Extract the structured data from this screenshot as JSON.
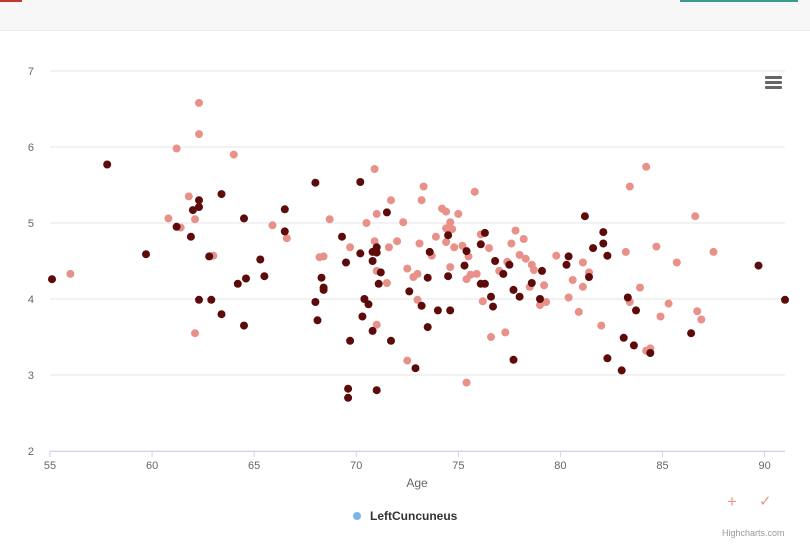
{
  "chart_data": {
    "type": "scatter",
    "xlabel": "Age",
    "ylabel": "",
    "xlim": [
      55,
      91
    ],
    "ylim": [
      2,
      7
    ],
    "x_ticks": [
      55,
      60,
      65,
      70,
      75,
      80,
      85,
      90
    ],
    "y_ticks": [
      2,
      3,
      4,
      5,
      6,
      7
    ],
    "grid": "horizontal",
    "legend": {
      "position": "bottom-center",
      "label": "LeftCuncuneus",
      "color": "#7cb5ec"
    },
    "series": [
      {
        "color": "#5c0a0a",
        "points": [
          [
            55.1,
            4.26
          ],
          [
            57.8,
            5.77
          ],
          [
            59.7,
            4.59
          ],
          [
            61.2,
            4.95
          ],
          [
            61.9,
            4.82
          ],
          [
            62.0,
            5.17
          ],
          [
            62.3,
            5.3
          ],
          [
            62.3,
            5.21
          ],
          [
            62.3,
            3.99
          ],
          [
            62.8,
            4.56
          ],
          [
            62.9,
            3.99
          ],
          [
            63.4,
            5.38
          ],
          [
            63.4,
            3.8
          ],
          [
            64.2,
            4.2
          ],
          [
            64.5,
            5.06
          ],
          [
            64.5,
            3.65
          ],
          [
            64.6,
            4.27
          ],
          [
            65.3,
            4.52
          ],
          [
            65.5,
            4.3
          ],
          [
            66.5,
            5.18
          ],
          [
            66.5,
            4.89
          ],
          [
            68.0,
            5.53
          ],
          [
            68.0,
            3.96
          ],
          [
            68.1,
            3.72
          ],
          [
            68.3,
            4.28
          ],
          [
            68.4,
            4.15
          ],
          [
            68.4,
            4.12
          ],
          [
            69.3,
            4.82
          ],
          [
            69.5,
            4.48
          ],
          [
            69.6,
            2.82
          ],
          [
            69.6,
            2.7
          ],
          [
            69.7,
            3.45
          ],
          [
            70.2,
            5.54
          ],
          [
            70.2,
            4.6
          ],
          [
            70.3,
            3.77
          ],
          [
            70.4,
            4.0
          ],
          [
            70.6,
            3.93
          ],
          [
            70.8,
            4.62
          ],
          [
            70.8,
            4.5
          ],
          [
            70.8,
            3.58
          ],
          [
            71.0,
            4.68
          ],
          [
            71.0,
            4.61
          ],
          [
            71.0,
            2.8
          ],
          [
            71.1,
            4.2
          ],
          [
            71.2,
            4.35
          ],
          [
            71.5,
            5.14
          ],
          [
            71.7,
            3.45
          ],
          [
            72.6,
            4.1
          ],
          [
            72.9,
            3.09
          ],
          [
            73.2,
            3.91
          ],
          [
            73.5,
            4.28
          ],
          [
            73.5,
            3.63
          ],
          [
            73.6,
            4.62
          ],
          [
            74.0,
            3.85
          ],
          [
            74.5,
            4.84
          ],
          [
            74.5,
            4.3
          ],
          [
            74.6,
            3.85
          ],
          [
            75.3,
            4.44
          ],
          [
            75.4,
            4.63
          ],
          [
            76.1,
            4.72
          ],
          [
            76.1,
            4.2
          ],
          [
            76.3,
            4.87
          ],
          [
            76.3,
            4.2
          ],
          [
            76.6,
            4.03
          ],
          [
            76.7,
            3.9
          ],
          [
            76.8,
            4.5
          ],
          [
            77.2,
            4.33
          ],
          [
            77.5,
            4.45
          ],
          [
            77.7,
            4.12
          ],
          [
            77.7,
            3.2
          ],
          [
            78.0,
            4.03
          ],
          [
            78.6,
            4.21
          ],
          [
            79.0,
            4.0
          ],
          [
            79.1,
            4.37
          ],
          [
            80.3,
            4.45
          ],
          [
            80.4,
            4.56
          ],
          [
            81.2,
            5.09
          ],
          [
            81.4,
            4.29
          ],
          [
            81.6,
            4.67
          ],
          [
            82.1,
            4.88
          ],
          [
            82.1,
            4.73
          ],
          [
            82.3,
            4.57
          ],
          [
            82.3,
            3.22
          ],
          [
            83.0,
            3.06
          ],
          [
            83.1,
            3.49
          ],
          [
            83.3,
            4.02
          ],
          [
            83.6,
            3.39
          ],
          [
            83.7,
            3.85
          ],
          [
            84.4,
            3.29
          ],
          [
            86.4,
            3.55
          ],
          [
            89.7,
            4.44
          ],
          [
            91.0,
            3.99
          ]
        ]
      },
      {
        "color": "#e8918a",
        "points": [
          [
            56.0,
            4.33
          ],
          [
            60.8,
            5.06
          ],
          [
            61.2,
            5.98
          ],
          [
            61.4,
            4.94
          ],
          [
            61.8,
            5.35
          ],
          [
            62.1,
            5.05
          ],
          [
            62.1,
            3.55
          ],
          [
            62.3,
            6.58
          ],
          [
            62.3,
            6.17
          ],
          [
            63.0,
            4.57
          ],
          [
            64.0,
            5.9
          ],
          [
            65.9,
            4.97
          ],
          [
            66.6,
            4.8
          ],
          [
            68.2,
            4.55
          ],
          [
            68.4,
            4.56
          ],
          [
            68.7,
            5.05
          ],
          [
            69.7,
            4.68
          ],
          [
            70.5,
            5.0
          ],
          [
            70.9,
            5.71
          ],
          [
            70.9,
            4.76
          ],
          [
            71.0,
            5.12
          ],
          [
            71.0,
            4.37
          ],
          [
            71.0,
            3.66
          ],
          [
            71.5,
            4.21
          ],
          [
            71.6,
            4.68
          ],
          [
            71.7,
            5.3
          ],
          [
            72.0,
            4.76
          ],
          [
            72.3,
            5.01
          ],
          [
            72.5,
            4.4
          ],
          [
            72.5,
            3.19
          ],
          [
            72.8,
            4.29
          ],
          [
            73.0,
            4.33
          ],
          [
            73.0,
            3.99
          ],
          [
            73.1,
            4.73
          ],
          [
            73.2,
            5.3
          ],
          [
            73.3,
            5.48
          ],
          [
            73.7,
            4.57
          ],
          [
            73.9,
            4.82
          ],
          [
            74.2,
            5.19
          ],
          [
            74.4,
            5.15
          ],
          [
            74.4,
            4.93
          ],
          [
            74.4,
            4.75
          ],
          [
            74.6,
            5.01
          ],
          [
            74.6,
            4.42
          ],
          [
            74.7,
            4.92
          ],
          [
            74.8,
            4.68
          ],
          [
            75.0,
            5.12
          ],
          [
            75.2,
            4.7
          ],
          [
            75.4,
            4.26
          ],
          [
            75.4,
            2.9
          ],
          [
            75.5,
            4.56
          ],
          [
            75.6,
            4.32
          ],
          [
            75.8,
            5.41
          ],
          [
            75.9,
            4.33
          ],
          [
            76.1,
            4.85
          ],
          [
            76.2,
            3.97
          ],
          [
            76.5,
            4.67
          ],
          [
            76.6,
            3.5
          ],
          [
            77.0,
            4.37
          ],
          [
            77.3,
            3.56
          ],
          [
            77.4,
            4.49
          ],
          [
            77.6,
            4.73
          ],
          [
            77.8,
            4.9
          ],
          [
            78.0,
            4.58
          ],
          [
            78.2,
            4.79
          ],
          [
            78.3,
            4.53
          ],
          [
            78.5,
            4.16
          ],
          [
            78.6,
            4.45
          ],
          [
            78.7,
            4.38
          ],
          [
            79.0,
            3.92
          ],
          [
            79.2,
            4.18
          ],
          [
            79.3,
            3.96
          ],
          [
            79.8,
            4.57
          ],
          [
            80.4,
            4.02
          ],
          [
            80.6,
            4.25
          ],
          [
            80.9,
            3.83
          ],
          [
            81.1,
            4.48
          ],
          [
            81.1,
            4.16
          ],
          [
            81.4,
            4.35
          ],
          [
            82.0,
            3.65
          ],
          [
            83.2,
            4.62
          ],
          [
            83.4,
            5.48
          ],
          [
            83.4,
            3.96
          ],
          [
            83.9,
            4.15
          ],
          [
            84.2,
            5.74
          ],
          [
            84.4,
            3.35
          ],
          [
            84.7,
            4.69
          ],
          [
            84.9,
            3.77
          ],
          [
            85.3,
            3.94
          ],
          [
            85.7,
            4.48
          ],
          [
            86.6,
            5.09
          ],
          [
            86.7,
            3.84
          ],
          [
            86.9,
            3.73
          ],
          [
            87.5,
            4.62
          ],
          [
            84.2,
            3.32
          ]
        ]
      }
    ]
  },
  "ui": {
    "menu_icon": "hamburger-menu-icon",
    "zoom_tool_icon": "plus-icon",
    "confirm_tool_icon": "check-icon",
    "plus_glyph": "+",
    "check_glyph": "✓",
    "credits": "Highcharts.com"
  }
}
